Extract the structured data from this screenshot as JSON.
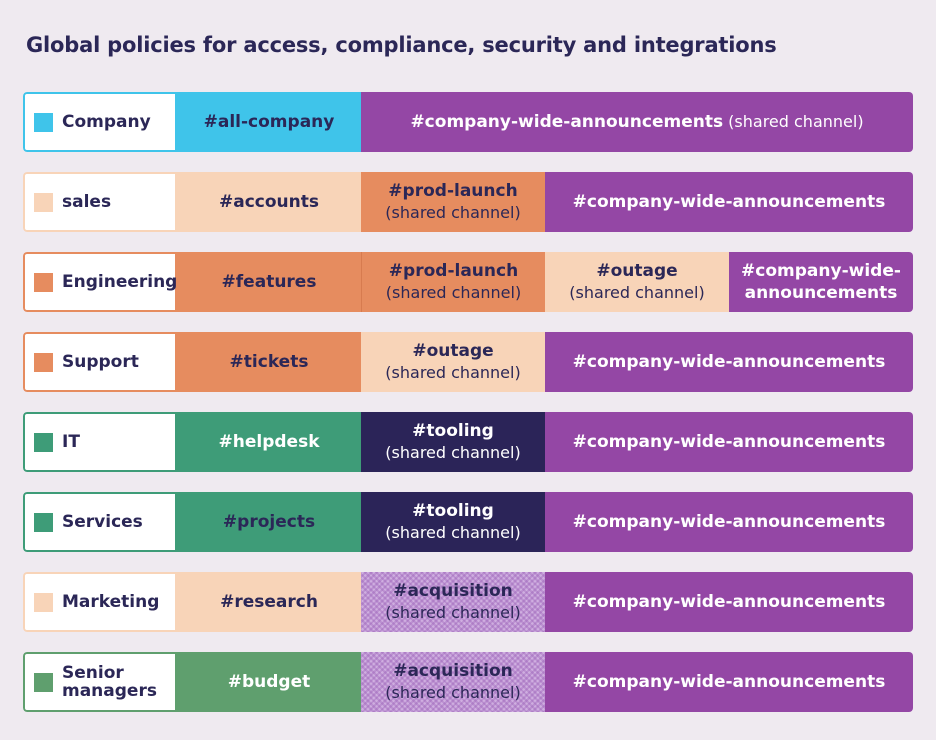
{
  "title": "Global policies for access, compliance, security and integrations",
  "colors": {
    "blue": "#3fc4ea",
    "purple": "#9447a5",
    "peach": "#f8d4b8",
    "orange": "#e68c5f",
    "green": "#3e9c78",
    "navy": "#2b2458",
    "lavender": "#cfaee0",
    "olive_green": "#5f9f6e",
    "text_dark": "#2b2757",
    "text_light": "#ffffff"
  },
  "rows": [
    {
      "label": "Company",
      "cells": [
        {
          "name": "#all-company",
          "note": ""
        },
        {
          "name": "#company-wide-announcements",
          "note": "(shared channel)"
        }
      ]
    },
    {
      "label": "sales",
      "cells": [
        {
          "name": "#accounts",
          "note": ""
        },
        {
          "name": "#prod-launch",
          "note": "(shared channel)"
        },
        {
          "name": "#company-wide-announcements",
          "note": ""
        }
      ]
    },
    {
      "label": "Engineering",
      "cells": [
        {
          "name": "#features",
          "note": ""
        },
        {
          "name": "#prod-launch",
          "note": "(shared channel)"
        },
        {
          "name": "#outage",
          "note": "(shared channel)"
        },
        {
          "name": "#company-wide-",
          "note": "announcements"
        }
      ]
    },
    {
      "label": "Support",
      "cells": [
        {
          "name": "#tickets",
          "note": ""
        },
        {
          "name": "#outage",
          "note": "(shared channel)"
        },
        {
          "name": "#company-wide-announcements",
          "note": ""
        }
      ]
    },
    {
      "label": "IT",
      "cells": [
        {
          "name": "#helpdesk",
          "note": ""
        },
        {
          "name": "#tooling",
          "note": "(shared channel)"
        },
        {
          "name": "#company-wide-announcements",
          "note": ""
        }
      ]
    },
    {
      "label": "Services",
      "cells": [
        {
          "name": "#projects",
          "note": ""
        },
        {
          "name": "#tooling",
          "note": "(shared channel)"
        },
        {
          "name": "#company-wide-announcements",
          "note": ""
        }
      ]
    },
    {
      "label": "Marketing",
      "cells": [
        {
          "name": "#research",
          "note": ""
        },
        {
          "name": "#acquisition",
          "note": "(shared channel)"
        },
        {
          "name": "#company-wide-announcements",
          "note": ""
        }
      ]
    },
    {
      "label": "Senior managers",
      "cells": [
        {
          "name": "#budget",
          "note": ""
        },
        {
          "name": "#acquisition",
          "note": "(shared channel)"
        },
        {
          "name": "#company-wide-announcements",
          "note": ""
        }
      ]
    }
  ]
}
